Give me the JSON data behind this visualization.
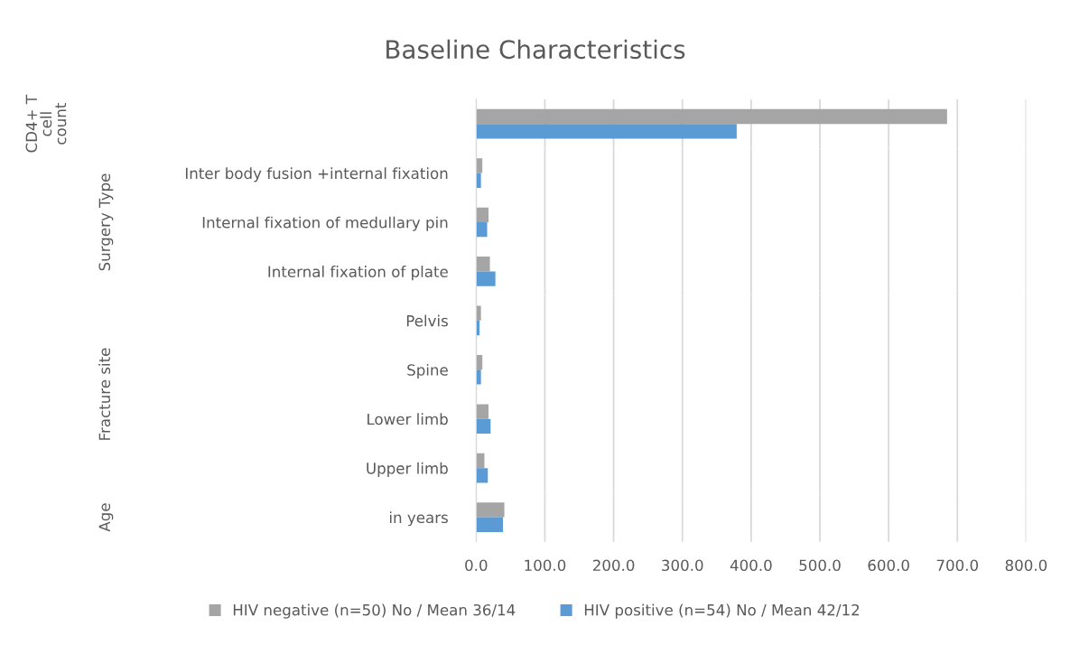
{
  "chart_data": [
    {
      "type": "bar",
      "orientation": "horizontal",
      "title": "Baseline Characteristics",
      "ylabel": "CD4+ T cell count",
      "categories": [
        null
      ],
      "series": [
        {
          "name": "HIV negative (n=50) No / Mean 36/14",
          "color": "#a5a5a5",
          "values": [
            685
          ]
        },
        {
          "name": "HIV positive (n=54) No / Mean 42/12",
          "color": "#5b9bd5",
          "values": [
            379
          ]
        }
      ],
      "xlim": [
        0,
        800
      ],
      "xticks": [
        0,
        100,
        200,
        300,
        400,
        500,
        600,
        700,
        800
      ],
      "grid": "x",
      "tick_labels": "y",
      "legend": "bottom"
    },
    {
      "type": "bar",
      "orientation": "horizontal",
      "ylabel": "Surgery Type",
      "categories": [
        "Inter body fusion +internal fixation",
        "Internal fixation of medullary pin",
        "Internal fixation of plate"
      ],
      "series": [
        {
          "color": "#a5a5a5",
          "values": [
            9,
            18,
            20
          ]
        },
        {
          "color": "#5b9bd5",
          "values": [
            7,
            16,
            28
          ]
        }
      ],
      "xlim": [
        0,
        800
      ],
      "xticks": [
        0,
        100,
        200,
        300,
        400,
        500,
        600,
        700,
        800
      ],
      "grid": "x",
      "tick_labels": "y"
    },
    {
      "type": "bar",
      "orientation": "horizontal",
      "ylabel": "Fracture site",
      "categories": [
        "Pelvis",
        "Spine",
        "Lower limb",
        "Upper limb"
      ],
      "series": [
        {
          "color": "#a5a5a5",
          "values": [
            7,
            9,
            18,
            12
          ]
        },
        {
          "color": "#5b9bd5",
          "values": [
            5,
            7,
            21,
            17
          ]
        }
      ],
      "xlim": [
        0,
        800
      ],
      "xticks": [
        0,
        100,
        200,
        300,
        400,
        500,
        600,
        700,
        800
      ],
      "grid": "x",
      "tick_labels": "y"
    },
    {
      "type": "bar",
      "orientation": "horizontal",
      "ylabel": "Age",
      "categories": [
        "in years"
      ],
      "series": [
        {
          "color": "#a5a5a5",
          "values": [
            41
          ]
        },
        {
          "color": "#5b9bd5",
          "values": [
            39
          ]
        }
      ],
      "xlim": [
        0,
        800
      ],
      "xticks": [
        {
          "value": 0,
          "label": "0.0"
        },
        {
          "value": 100,
          "label": "100.0"
        },
        {
          "value": 200,
          "label": "200.0"
        },
        {
          "value": 300,
          "label": "300.0"
        },
        {
          "value": 400,
          "label": "400.0"
        },
        {
          "value": 500,
          "label": "500.0"
        },
        {
          "value": 600,
          "label": "600.0"
        },
        {
          "value": 700,
          "label": "700.0"
        },
        {
          "value": 800,
          "label": "800.0"
        }
      ],
      "grid": "x"
    }
  ]
}
